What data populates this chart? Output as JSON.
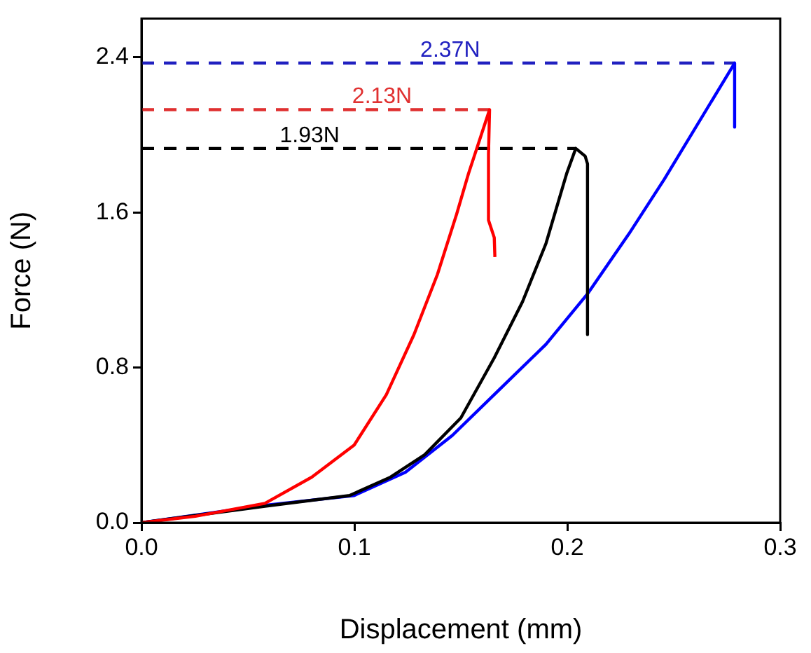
{
  "chart_data": {
    "type": "line",
    "xlabel": "Displacement (mm)",
    "ylabel": "Force (N)",
    "xlim": [
      0,
      0.3
    ],
    "ylim": [
      0,
      2.6
    ],
    "xticks": [
      {
        "value": 0,
        "label": "0.0"
      },
      0.1,
      0.2,
      0.3
    ],
    "yticks": [
      {
        "value": 0,
        "label": "0.0"
      },
      0.8,
      1.6,
      2.4
    ],
    "grid": false,
    "legend": false,
    "marker": "none",
    "series": [
      {
        "color": "#ff0000",
        "line_style": "solid",
        "x": [
          0,
          0.0253,
          0.058,
          0.08,
          0.0999,
          0.115,
          0.128,
          0.139,
          0.148,
          0.1536,
          0.1635,
          0.163,
          0.163,
          0.1657,
          0.166
        ],
        "values": [
          0,
          0.033,
          0.1,
          0.235,
          0.4,
          0.66,
          0.97,
          1.28,
          1.59,
          1.8,
          2.13,
          1.9,
          1.56,
          1.47,
          1.37
        ]
      },
      {
        "color": "#000000",
        "line_style": "solid",
        "x": [
          0,
          0.058,
          0.0977,
          0.117,
          0.133,
          0.15,
          0.1657,
          0.179,
          0.19,
          0.1997,
          0.204,
          0.2084,
          0.2095,
          0.2095
        ],
        "values": [
          0,
          0.085,
          0.14,
          0.235,
          0.35,
          0.54,
          0.85,
          1.14,
          1.44,
          1.8,
          1.93,
          1.89,
          1.85,
          0.97
        ]
      },
      {
        "color": "#0000ff",
        "line_style": "solid",
        "x": [
          0,
          0.058,
          0.0999,
          0.124,
          0.146,
          0.168,
          0.19,
          0.2095,
          0.229,
          0.2455,
          0.2786,
          0.2786
        ],
        "values": [
          0,
          0.09,
          0.14,
          0.26,
          0.45,
          0.685,
          0.92,
          1.18,
          1.49,
          1.77,
          2.37,
          2.04
        ]
      },
      {
        "color": "#e03030",
        "line_style": "dashed",
        "x": [
          0,
          0.1635
        ],
        "values": [
          2.13,
          2.13
        ]
      },
      {
        "color": "#000000",
        "line_style": "dashed",
        "x": [
          0,
          0.204
        ],
        "values": [
          1.93,
          1.93
        ]
      },
      {
        "color": "#2020c0",
        "line_style": "dashed",
        "x": [
          0,
          0.2786
        ],
        "values": [
          2.37,
          2.37
        ]
      }
    ],
    "annotations": [
      {
        "text": "2.37N",
        "x": 0.145,
        "y": 2.37
      },
      {
        "text": "2.13N",
        "x": 0.113,
        "y": 2.13
      },
      {
        "text": "1.93N",
        "x": 0.079,
        "y": 1.93
      }
    ]
  }
}
